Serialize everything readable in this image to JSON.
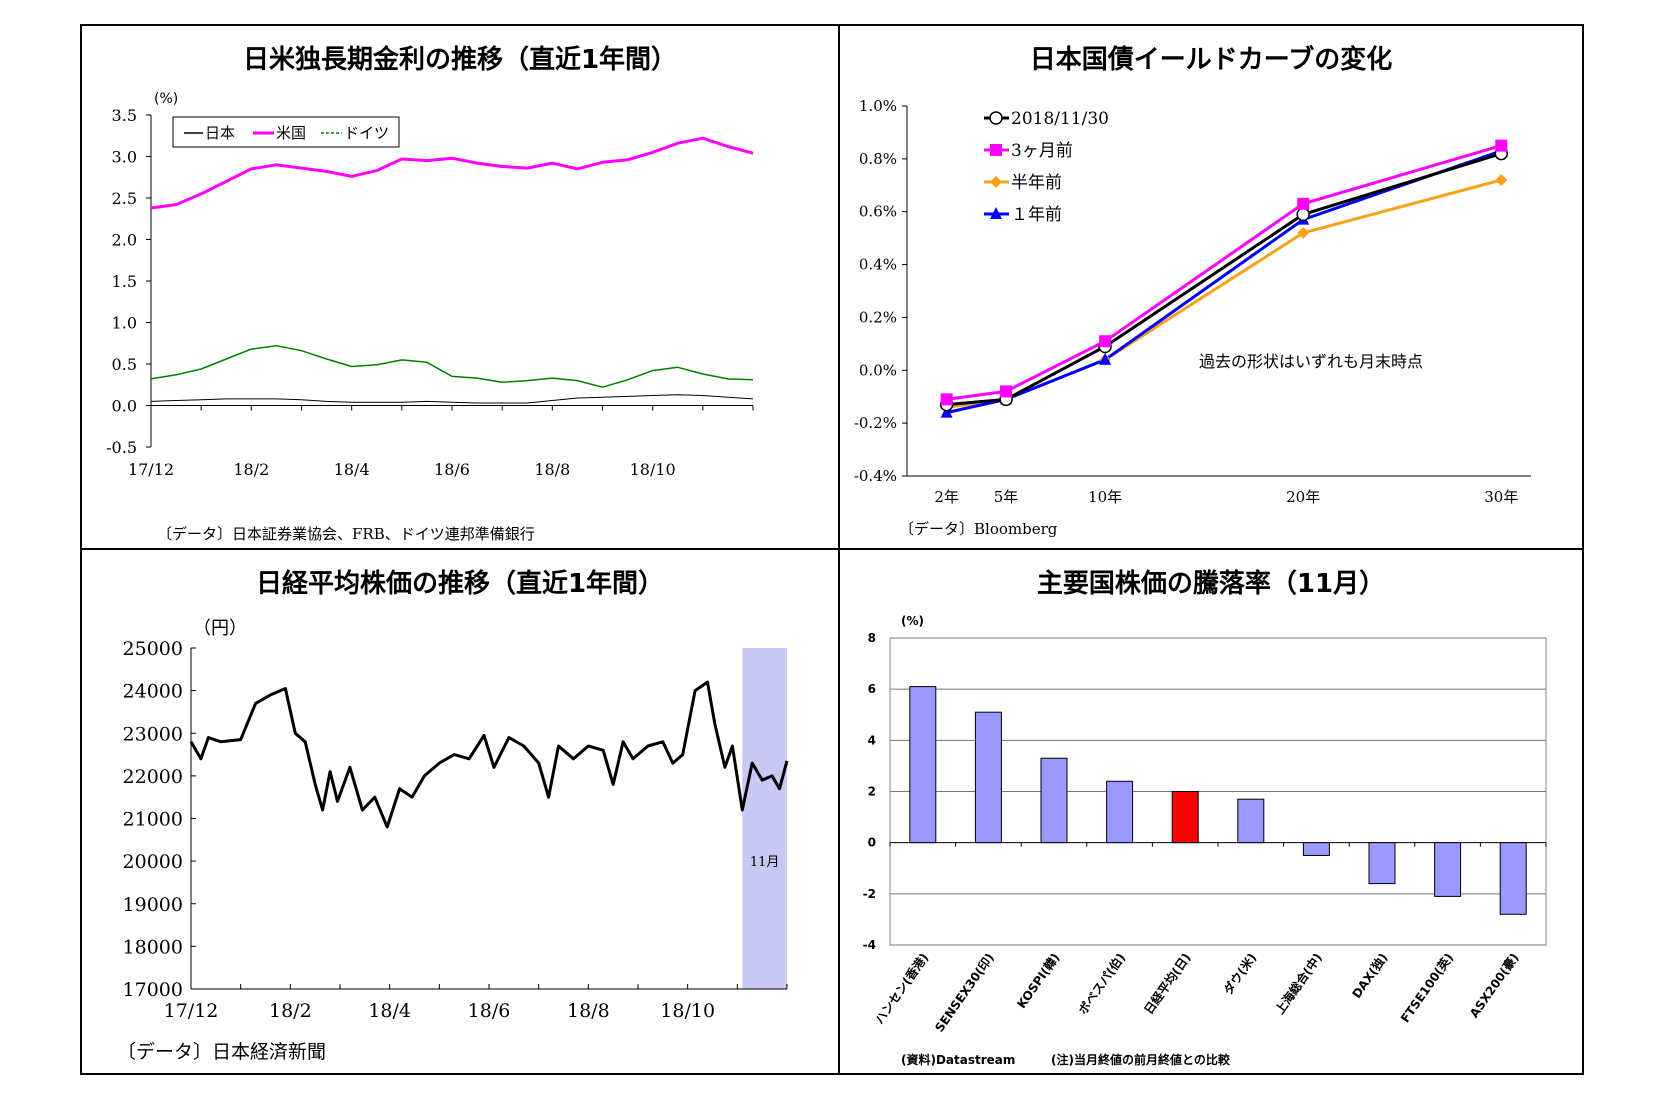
{
  "colors": {
    "japan": "#000000",
    "us": "#ff00ff",
    "germany": "#008000",
    "curve_latest": "#000000",
    "curve_3m": "#ff00ff",
    "curve_6m": "#f7a21b",
    "curve_1y": "#0000ff",
    "nikkei_highlight": "#c8c8f5",
    "bar_default": "#9999ff",
    "bar_highlight": "#ff0000"
  },
  "panels": {
    "rates": {
      "title": "日米独長期金利の推移（直近1年間）",
      "unit": "(%)",
      "source": "〔データ〕日本証券業協会、FRB、ドイツ連邦準備銀行"
    },
    "curve": {
      "title": "日本国債イールドカーブの変化",
      "note": "過去の形状はいずれも月末時点",
      "source": "〔データ〕Bloomberg"
    },
    "nikkei": {
      "title": "日経平均株価の推移（直近1年間）",
      "unit": "（円）",
      "band_label": "11月",
      "source": "〔データ〕日本経済新聞"
    },
    "stocks": {
      "title": "主要国株価の騰落率（11月）",
      "unit": "(%)",
      "source_left": "(資料)Datastream",
      "source_right": "(注)当月終値の前月終値との比較"
    }
  },
  "chart_data": [
    {
      "type": "line",
      "title": "日米独長期金利の推移（直近1年間）",
      "ylabel": "(%)",
      "ylim": [
        -0.5,
        3.5
      ],
      "yticks": [
        "3.5",
        "3.0",
        "2.5",
        "2.0",
        "1.5",
        "1.0",
        "0.5",
        "0.0",
        "-0.5"
      ],
      "ytick_values": [
        3.5,
        3.0,
        2.5,
        2.0,
        1.5,
        1.0,
        0.5,
        0.0,
        -0.5
      ],
      "xticks": [
        "17/12",
        "18/2",
        "18/4",
        "18/6",
        "18/8",
        "18/10"
      ],
      "xtick_pos": [
        0,
        2,
        4,
        6,
        8,
        10
      ],
      "xlim": [
        0,
        12
      ],
      "legend": [
        "日本",
        "米国",
        "ドイツ"
      ],
      "legend_position": "top-left",
      "series": [
        {
          "name": "日本",
          "x": [
            0,
            0.5,
            1,
            1.5,
            2,
            2.5,
            3,
            3.5,
            4,
            4.5,
            5,
            5.5,
            6,
            6.5,
            7,
            7.5,
            8,
            8.5,
            9,
            9.5,
            10,
            10.5,
            11,
            11.5,
            12
          ],
          "values": [
            0.05,
            0.06,
            0.07,
            0.08,
            0.08,
            0.08,
            0.07,
            0.05,
            0.04,
            0.04,
            0.04,
            0.05,
            0.04,
            0.03,
            0.03,
            0.03,
            0.06,
            0.09,
            0.1,
            0.11,
            0.12,
            0.13,
            0.12,
            0.1,
            0.08
          ]
        },
        {
          "name": "米国",
          "x": [
            0,
            0.5,
            1,
            1.5,
            2,
            2.5,
            3,
            3.5,
            4,
            4.5,
            5,
            5.5,
            6,
            6.5,
            7,
            7.5,
            8,
            8.5,
            9,
            9.5,
            10,
            10.5,
            11,
            11.5,
            12
          ],
          "values": [
            2.38,
            2.42,
            2.55,
            2.7,
            2.85,
            2.9,
            2.86,
            2.82,
            2.76,
            2.83,
            2.97,
            2.95,
            2.98,
            2.92,
            2.88,
            2.86,
            2.92,
            2.85,
            2.93,
            2.96,
            3.05,
            3.16,
            3.22,
            3.12,
            3.04
          ]
        },
        {
          "name": "ドイツ",
          "x": [
            0,
            0.5,
            1,
            1.5,
            2,
            2.5,
            3,
            3.5,
            4,
            4.5,
            5,
            5.5,
            6,
            6.5,
            7,
            7.5,
            8,
            8.5,
            9,
            9.5,
            10,
            10.5,
            11,
            11.5,
            12
          ],
          "values": [
            0.32,
            0.37,
            0.44,
            0.56,
            0.68,
            0.72,
            0.66,
            0.56,
            0.47,
            0.49,
            0.55,
            0.52,
            0.35,
            0.33,
            0.28,
            0.3,
            0.33,
            0.3,
            0.22,
            0.31,
            0.42,
            0.46,
            0.38,
            0.32,
            0.31
          ]
        }
      ]
    },
    {
      "type": "line",
      "title": "日本国債イールドカーブの変化",
      "ylim": [
        -0.4,
        1.0
      ],
      "yticks": [
        "1.0%",
        "0.8%",
        "0.6%",
        "0.4%",
        "0.2%",
        "0.0%",
        "-0.2%",
        "-0.4%"
      ],
      "ytick_values": [
        1.0,
        0.8,
        0.6,
        0.4,
        0.2,
        0.0,
        -0.2,
        -0.4
      ],
      "categories": [
        "2年",
        "5年",
        "10年",
        "20年",
        "30年"
      ],
      "x": [
        2,
        5,
        10,
        20,
        30
      ],
      "legend_position": "top-left",
      "series": [
        {
          "name": "2018/11/30",
          "marker": "open-circle",
          "values": [
            -0.13,
            -0.11,
            0.09,
            0.59,
            0.82
          ]
        },
        {
          "name": "3ヶ月前",
          "marker": "square",
          "values": [
            -0.11,
            -0.08,
            0.11,
            0.63,
            0.85
          ]
        },
        {
          "name": "半年前",
          "marker": "diamond",
          "values": [
            -0.14,
            -0.11,
            0.04,
            0.52,
            0.72
          ]
        },
        {
          "name": "１年前",
          "marker": "triangle",
          "values": [
            -0.16,
            -0.11,
            0.04,
            0.57,
            0.83
          ]
        }
      ]
    },
    {
      "type": "line",
      "title": "日経平均株価の推移（直近1年間）",
      "ylabel": "（円）",
      "ylim": [
        17000,
        25000
      ],
      "yticks": [
        "25000",
        "24000",
        "23000",
        "22000",
        "21000",
        "20000",
        "19000",
        "18000",
        "17000"
      ],
      "ytick_values": [
        25000,
        24000,
        23000,
        22000,
        21000,
        20000,
        19000,
        18000,
        17000
      ],
      "xticks": [
        "17/12",
        "18/2",
        "18/4",
        "18/6",
        "18/8",
        "18/10"
      ],
      "xtick_pos": [
        0,
        2,
        4,
        6,
        8,
        10
      ],
      "xlim": [
        0,
        12
      ],
      "highlight": {
        "label": "11月",
        "from": 11.1,
        "to": 12
      },
      "series": [
        {
          "name": "",
          "x": [
            0,
            0.2,
            0.35,
            0.6,
            1,
            1.3,
            1.6,
            1.9,
            2.1,
            2.3,
            2.5,
            2.65,
            2.8,
            2.95,
            3.2,
            3.45,
            3.7,
            3.95,
            4.2,
            4.45,
            4.7,
            5,
            5.3,
            5.6,
            5.9,
            6.1,
            6.4,
            6.7,
            7,
            7.2,
            7.4,
            7.7,
            8,
            8.3,
            8.5,
            8.7,
            8.9,
            9.2,
            9.5,
            9.7,
            9.9,
            10.15,
            10.4,
            10.55,
            10.75,
            10.9,
            11.1,
            11.3,
            11.5,
            11.7,
            11.85,
            12
          ],
          "values": [
            22800,
            22400,
            22900,
            22800,
            22850,
            23700,
            23900,
            24050,
            23000,
            22800,
            21800,
            21200,
            22100,
            21400,
            22200,
            21200,
            21500,
            20800,
            21700,
            21500,
            22000,
            22300,
            22500,
            22400,
            22950,
            22200,
            22900,
            22700,
            22300,
            21500,
            22700,
            22400,
            22700,
            22600,
            21800,
            22800,
            22400,
            22700,
            22800,
            22300,
            22500,
            24000,
            24200,
            23200,
            22200,
            22700,
            21200,
            22300,
            21900,
            22000,
            21700,
            22350
          ]
        }
      ]
    },
    {
      "type": "bar",
      "title": "主要国株価の騰落率（11月）",
      "ylabel": "(%)",
      "ylim": [
        -4,
        8
      ],
      "yticks": [
        "8",
        "6",
        "4",
        "2",
        "0",
        "-2",
        "-4"
      ],
      "ytick_values": [
        8,
        6,
        4,
        2,
        0,
        -2,
        -4
      ],
      "categories": [
        "ハンセン(香港)",
        "SENSEX30(印)",
        "KOSPI(韓)",
        "ボベスパ(伯)",
        "日経平均(日)",
        "ダウ(米)",
        "上海総合(中)",
        "DAX(独)",
        "FTSE100(英)",
        "ASX200(豪)"
      ],
      "values": [
        6.1,
        5.1,
        3.3,
        2.4,
        2.0,
        1.7,
        -0.5,
        -1.6,
        -2.1,
        -2.8
      ],
      "highlight_index": 4
    }
  ]
}
